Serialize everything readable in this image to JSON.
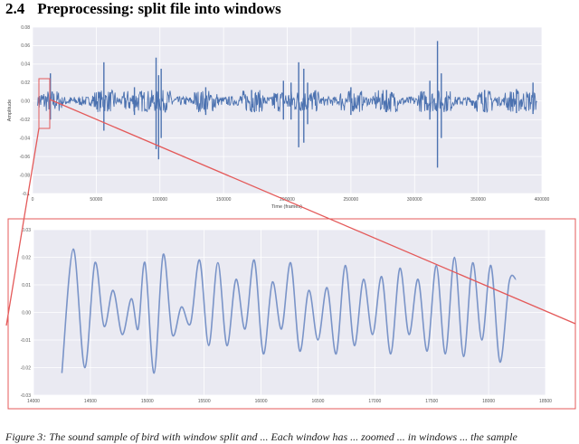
{
  "heading": {
    "number": "2.4",
    "title": "Preprocessing: split file into windows"
  },
  "caption": "Figure 3: The sound sample of bird with window split and ... Each window has ... zoomed ... in windows ... the sample",
  "chart_data": [
    {
      "type": "line",
      "title": "",
      "xlabel": "Time (frames)",
      "ylabel": "Amplitude",
      "xlim": [
        0,
        400000
      ],
      "ylim": [
        -0.1,
        0.08
      ],
      "x_ticks": [
        "0",
        "50000",
        "100000",
        "150000",
        "200000",
        "250000",
        "300000",
        "350000",
        "400000"
      ],
      "y_ticks": [
        "0.08",
        "0.06",
        "0.04",
        "0.02",
        "0.00",
        "-0.02",
        "-0.04",
        "-0.06",
        "-0.08",
        "-0.1"
      ],
      "grid": true,
      "color": "#4c72b0",
      "spikes": [
        {
          "x": 14000,
          "top": 0.03,
          "bottom": -0.02
        },
        {
          "x": 56000,
          "top": 0.042,
          "bottom": -0.032
        },
        {
          "x": 80000,
          "top": 0.015,
          "bottom": -0.015
        },
        {
          "x": 97000,
          "top": 0.047,
          "bottom": -0.052
        },
        {
          "x": 99000,
          "top": 0.028,
          "bottom": -0.063
        },
        {
          "x": 101000,
          "top": 0.035,
          "bottom": -0.04
        },
        {
          "x": 136000,
          "top": 0.015,
          "bottom": -0.015
        },
        {
          "x": 172000,
          "top": 0.012,
          "bottom": -0.012
        },
        {
          "x": 197000,
          "top": 0.022,
          "bottom": -0.02
        },
        {
          "x": 203000,
          "top": 0.02,
          "bottom": -0.02
        },
        {
          "x": 209000,
          "top": 0.042,
          "bottom": -0.05
        },
        {
          "x": 213000,
          "top": 0.035,
          "bottom": -0.045
        },
        {
          "x": 216000,
          "top": 0.02,
          "bottom": -0.025
        },
        {
          "x": 250000,
          "top": 0.015,
          "bottom": -0.015
        },
        {
          "x": 278000,
          "top": 0.012,
          "bottom": -0.012
        },
        {
          "x": 312000,
          "top": 0.022,
          "bottom": -0.02
        },
        {
          "x": 318000,
          "top": 0.065,
          "bottom": -0.072
        },
        {
          "x": 321000,
          "top": 0.03,
          "bottom": -0.04
        },
        {
          "x": 355000,
          "top": 0.012,
          "bottom": -0.012
        },
        {
          "x": 380000,
          "top": 0.013,
          "bottom": -0.013
        },
        {
          "x": 393000,
          "top": 0.02,
          "bottom": -0.014
        }
      ]
    },
    {
      "type": "line",
      "title": "",
      "xlabel": "",
      "ylabel": "",
      "xlim": [
        14000,
        18500
      ],
      "ylim": [
        -0.03,
        0.03
      ],
      "x_ticks": [
        "14000",
        "14500",
        "15000",
        "15500",
        "16000",
        "16500",
        "17000",
        "17500",
        "18000",
        "18500"
      ],
      "y_ticks": [
        "0.03",
        "0.02",
        "0.01",
        "0.00",
        "-0.01",
        "-0.02",
        "-0.03"
      ],
      "grid": true,
      "color": "#7a94c8",
      "x": [
        14250,
        14350,
        14450,
        14540,
        14620,
        14700,
        14780,
        14860,
        14920,
        14980,
        15060,
        15140,
        15220,
        15300,
        15380,
        15460,
        15540,
        15620,
        15700,
        15780,
        15860,
        15940,
        16020,
        16100,
        16180,
        16260,
        16340,
        16420,
        16500,
        16580,
        16660,
        16740,
        16820,
        16900,
        16980,
        17060,
        17140,
        17220,
        17300,
        17380,
        17460,
        17540,
        17620,
        17700,
        17780,
        17860,
        17940,
        18020,
        18100,
        18180,
        18240
      ],
      "values": [
        -0.022,
        0.023,
        -0.02,
        0.018,
        -0.005,
        0.008,
        -0.008,
        0.005,
        -0.006,
        0.018,
        -0.022,
        0.021,
        -0.008,
        0.002,
        -0.004,
        0.019,
        -0.012,
        0.018,
        -0.012,
        0.012,
        -0.006,
        0.019,
        -0.015,
        0.011,
        -0.006,
        0.018,
        -0.014,
        0.008,
        -0.01,
        0.009,
        -0.015,
        0.017,
        -0.012,
        0.012,
        -0.008,
        0.013,
        -0.015,
        0.016,
        -0.008,
        0.012,
        -0.014,
        0.017,
        -0.015,
        0.02,
        -0.016,
        0.018,
        -0.01,
        0.017,
        -0.018,
        0.011,
        0.012
      ]
    }
  ]
}
